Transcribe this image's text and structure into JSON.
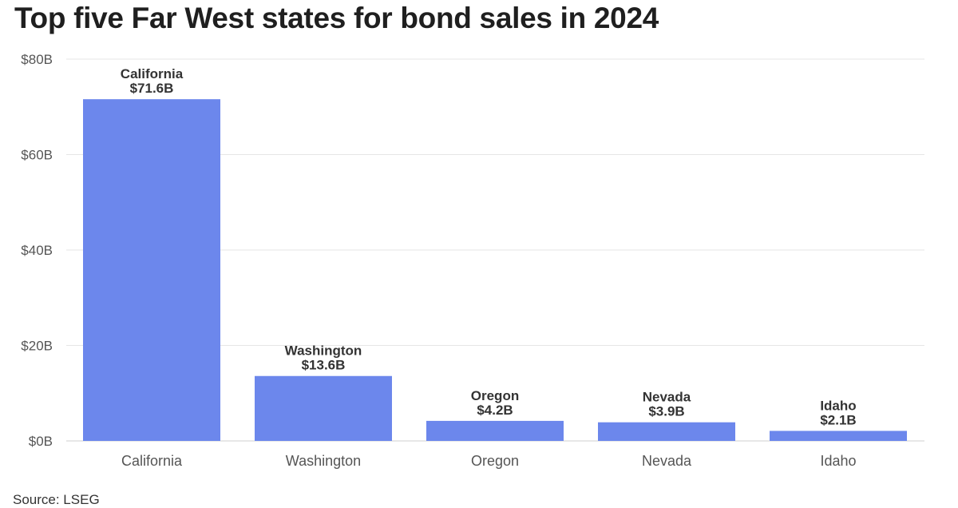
{
  "chart_data": {
    "type": "bar",
    "title": "Top five Far West states for bond sales in 2024",
    "categories": [
      "California",
      "Washington",
      "Oregon",
      "Nevada",
      "Idaho"
    ],
    "series": [
      {
        "values": [
          71.6,
          13.6,
          4.2,
          3.9,
          2.1
        ],
        "data_labels": [
          [
            "California",
            "$71.6B"
          ],
          [
            "Washington",
            "$13.6B"
          ],
          [
            "Oregon",
            "$4.2B"
          ],
          [
            "Nevada",
            "$3.9B"
          ],
          [
            "Idaho",
            "$2.1B"
          ]
        ]
      }
    ],
    "ylim": [
      0,
      80
    ],
    "yticks": [
      0,
      20,
      40,
      60,
      80
    ],
    "ytick_labels": [
      "$0B",
      "$20B",
      "$40B",
      "$60B",
      "$80B"
    ],
    "xlabel": "",
    "ylabel": "",
    "grid": true,
    "legend": "none",
    "bar_color": "#6c87ec",
    "source": "Source: LSEG"
  }
}
